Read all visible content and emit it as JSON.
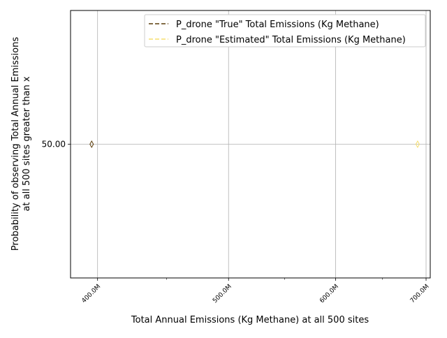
{
  "chart_data": {
    "type": "line",
    "xlabel": "Total Annual Emissions (Kg Methane) at all 500 sites",
    "ylabel_lines": [
      "Probability of observing Total Annual Emissions",
      "at all 500 sites greater than x"
    ],
    "x_scale": "log",
    "xlim": [
      382000000,
      705000000
    ],
    "ylim": [
      0,
      100
    ],
    "x_ticks": [
      {
        "value": 400000000,
        "label": "400.0M"
      },
      {
        "value": 500000000,
        "label": "500.0M"
      },
      {
        "value": 600000000,
        "label": "600.0M"
      },
      {
        "value": 700000000,
        "label": "700.0M"
      }
    ],
    "x_minor_ticks": [
      450000000,
      550000000,
      650000000
    ],
    "y_ticks": [
      {
        "value": 50,
        "label": "50.00"
      }
    ],
    "grid": true,
    "legend": "top-right",
    "series": [
      {
        "name": "P_drone \"True\" Total Emissions (Kg Methane)",
        "color": "#5c3d0a",
        "linestyle": "dashed",
        "marker": "diamond",
        "points": [
          {
            "x": 396000000,
            "y": 50
          }
        ]
      },
      {
        "name": "P_drone \"Estimated\" Total Emissions (Kg Methane)",
        "color": "#f5de6e",
        "linestyle": "dashed",
        "marker": "diamond",
        "points": [
          {
            "x": 690000000,
            "y": 50
          }
        ]
      }
    ]
  }
}
